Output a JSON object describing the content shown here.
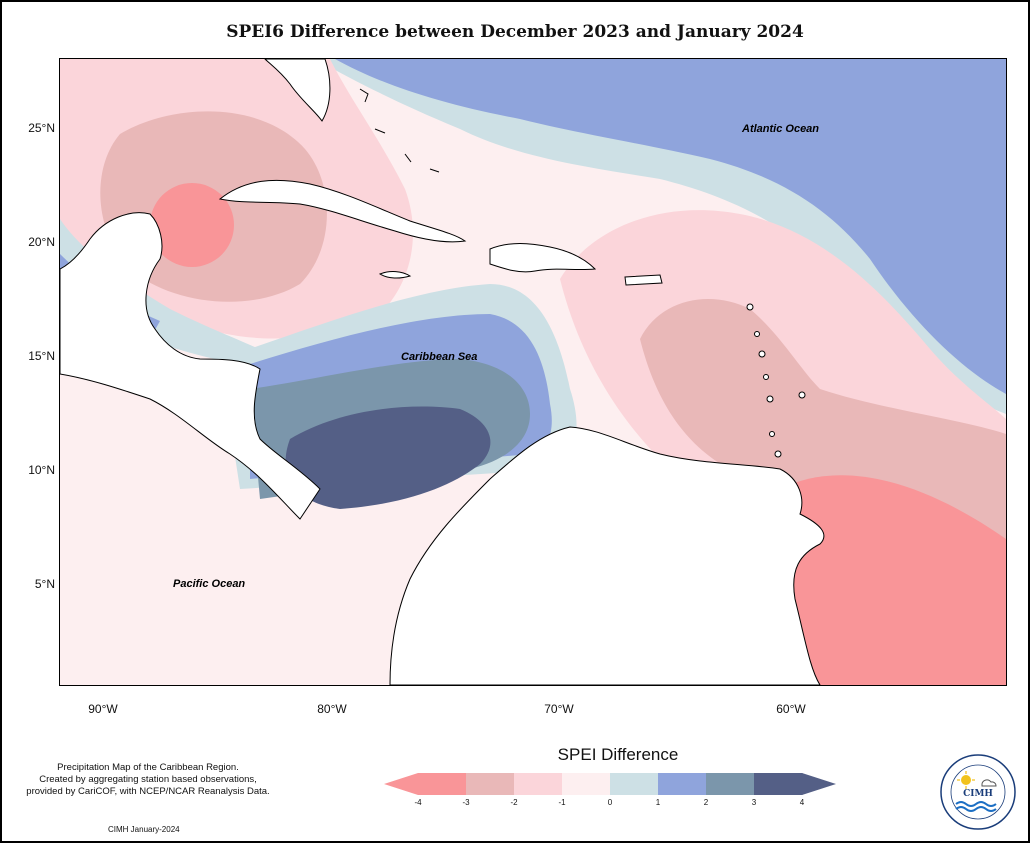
{
  "title": "SPEI6 Difference between December 2023 and January 2024",
  "latitude_labels": [
    "25°N",
    "20°N",
    "15°N",
    "10°N",
    "5°N"
  ],
  "longitude_labels": [
    "90°W",
    "80°W",
    "70°W",
    "60°W"
  ],
  "ocean_labels": {
    "atlantic": "Atlantic Ocean",
    "caribbean": "Caribbean Sea",
    "pacific": "Pacific Ocean"
  },
  "note_lines": [
    "Precipitation Map of the Caribbean Region.",
    "Created by aggregating station based observations,",
    "provided by CariCOF, with NCEP/NCAR Reanalysis Data."
  ],
  "credit": "CIMH January-2024",
  "legend": {
    "title": "SPEI Difference",
    "ticks": [
      "-4",
      "-3",
      "-2",
      "-1",
      "0",
      "1",
      "2",
      "3",
      "4"
    ],
    "colors": [
      "#f99598",
      "#e9b8b8",
      "#fbd5da",
      "#fdeff0",
      "#cde0e5",
      "#8fa4dc",
      "#7b96ab",
      "#545f86"
    ]
  },
  "logo": {
    "text": "CIMH",
    "icon": "cimh-logo-sun-cloud-waves"
  }
}
